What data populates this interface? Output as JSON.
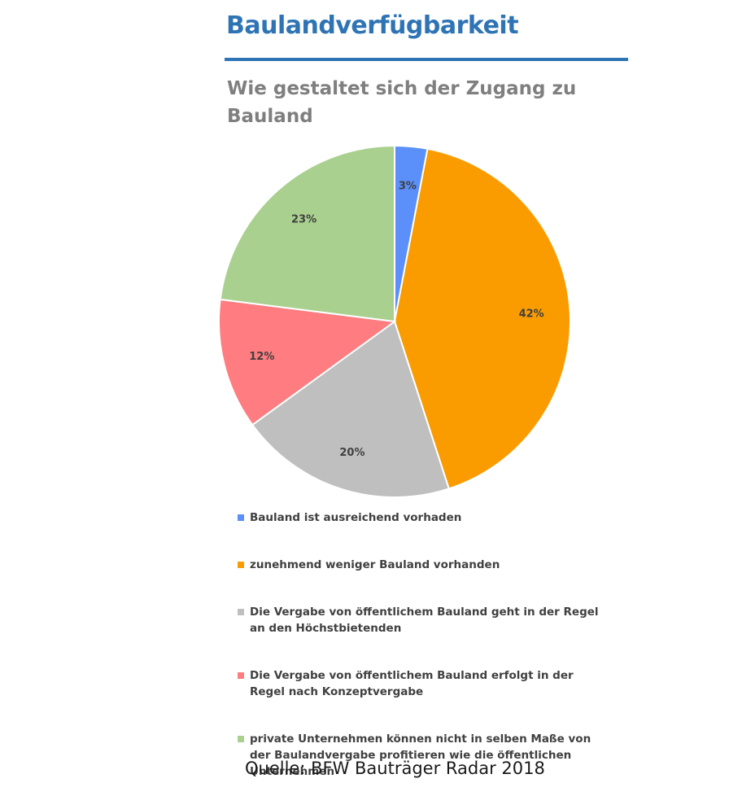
{
  "header": {
    "title": "Baulandverfügbarkeit"
  },
  "source": "Quelle: BFW Bauträger Radar 2018",
  "chart_data": {
    "type": "pie",
    "title": "Wie gestaltet sich der Zugang zu Bauland",
    "categories": [
      "Bauland ist ausreichend vorhaden",
      "zunehmend weniger Bauland vorhanden",
      "Die Vergabe von öffentlichem Bauland geht in der Regel an den Höchstbietenden",
      "Die Vergabe von öffentlichem Bauland erfolgt in der Regel nach Konzeptvergabe",
      "private Unternehmen können nicht in selben Maße von der Baulandvergabe profitieren wie die öffentlichen Unternehmen"
    ],
    "values": [
      3,
      42,
      20,
      12,
      23
    ],
    "labels": [
      "3%",
      "42%",
      "20%",
      "12%",
      "23%"
    ],
    "colors": [
      "#5b8ff9",
      "#fa9c00",
      "#bfbfbf",
      "#ff7c80",
      "#a9d08e"
    ],
    "legend_position": "bottom"
  }
}
